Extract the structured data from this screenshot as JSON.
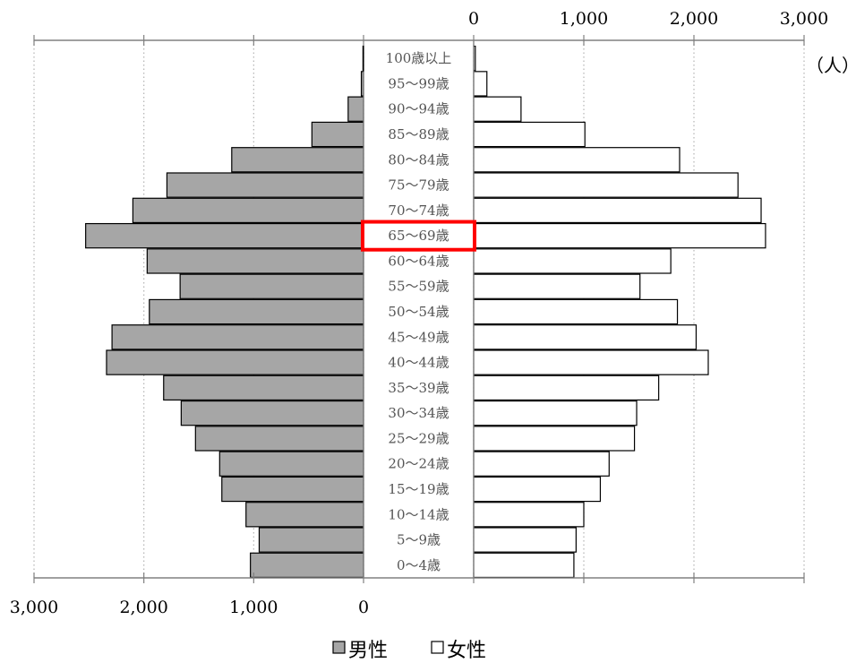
{
  "chart_data": {
    "type": "bar",
    "orientation": "horizontal",
    "layout": "population-pyramid",
    "title": "",
    "unit": "（人）",
    "categories": [
      "100歳以上",
      "95～99歳",
      "90～94歳",
      "85～89歳",
      "80～84歳",
      "75～79歳",
      "70～74歳",
      "65～69歳",
      "60～64歳",
      "55～59歳",
      "50～54歳",
      "45～49歳",
      "40～44歳",
      "35～39歳",
      "30～34歳",
      "25～29歳",
      "20～24歳",
      "15～19歳",
      "10～14歳",
      "5～9歳",
      "0～4歳"
    ],
    "series": [
      {
        "name": "男性",
        "side": "left",
        "color": "#a6a6a6",
        "values": [
          5,
          20,
          140,
          470,
          1200,
          1790,
          2100,
          2530,
          1970,
          1670,
          1950,
          2290,
          2340,
          1820,
          1660,
          1530,
          1310,
          1290,
          1070,
          950,
          1030
        ]
      },
      {
        "name": "女性",
        "side": "right",
        "color": "#ffffff",
        "values": [
          15,
          120,
          430,
          1010,
          1870,
          2400,
          2610,
          2650,
          1790,
          1510,
          1850,
          2020,
          2130,
          1680,
          1480,
          1460,
          1230,
          1150,
          1000,
          930,
          910
        ]
      }
    ],
    "left_axis": {
      "range": [
        0,
        3000
      ],
      "reversed": true,
      "ticks": [
        "3,000",
        "2,000",
        "1,000",
        "0"
      ]
    },
    "right_axis": {
      "range": [
        0,
        3000
      ],
      "ticks": [
        "0",
        "1,000",
        "2,000",
        "3,000"
      ]
    },
    "grid": true,
    "gridline_style": "dotted",
    "legend_position": "bottom-center",
    "highlighted_category": "65～69歳",
    "highlight_color": "#ff0000"
  }
}
